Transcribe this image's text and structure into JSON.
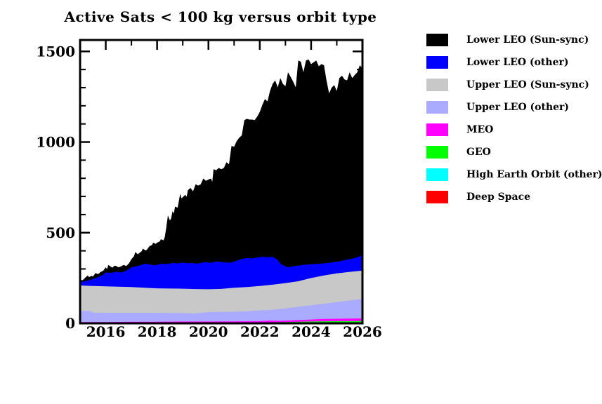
{
  "chart_data": {
    "type": "area",
    "variant": "stacked-area",
    "title": "Active Sats < 100 kg versus orbit type",
    "xlabel": "",
    "ylabel": "",
    "x_range": [
      2015,
      2026
    ],
    "y_range": [
      0,
      1563
    ],
    "x_major_ticks": [
      2016,
      2018,
      2020,
      2022,
      2024,
      2026
    ],
    "x_tick_labels": [
      "2016",
      "2018",
      "2020",
      "2022",
      "2024",
      "2026"
    ],
    "x_minor_step": 1,
    "y_major_ticks": [
      0,
      500,
      1000,
      1500
    ],
    "y_tick_labels": [
      "0",
      "500",
      "1000",
      "1500"
    ],
    "y_minor_step": 100,
    "grid": "off",
    "legend_position": "right",
    "note": "Series listed top-of-stack first; points are cumulative stack heights (active satellite counts) vs decimal year",
    "series": [
      {
        "name": "Lower LEO (Sun-sync)",
        "color": "#000000",
        "points": [
          [
            2015.0,
            240
          ],
          [
            2015.1,
            238
          ],
          [
            2015.2,
            252
          ],
          [
            2015.3,
            264
          ],
          [
            2015.35,
            255
          ],
          [
            2015.45,
            262
          ],
          [
            2015.5,
            258
          ],
          [
            2015.6,
            277
          ],
          [
            2015.7,
            272
          ],
          [
            2015.8,
            283
          ],
          [
            2015.9,
            290
          ],
          [
            2016.0,
            309
          ],
          [
            2016.05,
            300
          ],
          [
            2016.1,
            322
          ],
          [
            2016.2,
            312
          ],
          [
            2016.25,
            307
          ],
          [
            2016.35,
            318
          ],
          [
            2016.4,
            316
          ],
          [
            2016.5,
            309
          ],
          [
            2016.6,
            315
          ],
          [
            2016.7,
            322
          ],
          [
            2016.8,
            316
          ],
          [
            2016.9,
            330
          ],
          [
            2017.0,
            354
          ],
          [
            2017.1,
            370
          ],
          [
            2017.15,
            393
          ],
          [
            2017.25,
            381
          ],
          [
            2017.3,
            387
          ],
          [
            2017.4,
            398
          ],
          [
            2017.45,
            412
          ],
          [
            2017.55,
            402
          ],
          [
            2017.6,
            406
          ],
          [
            2017.7,
            425
          ],
          [
            2017.8,
            432
          ],
          [
            2017.85,
            445
          ],
          [
            2017.95,
            438
          ],
          [
            2018.0,
            445
          ],
          [
            2018.1,
            452
          ],
          [
            2018.15,
            464
          ],
          [
            2018.25,
            458
          ],
          [
            2018.3,
            477
          ],
          [
            2018.35,
            520
          ],
          [
            2018.42,
            595
          ],
          [
            2018.5,
            567
          ],
          [
            2018.55,
            580
          ],
          [
            2018.6,
            619
          ],
          [
            2018.65,
            605
          ],
          [
            2018.7,
            644
          ],
          [
            2018.8,
            638
          ],
          [
            2018.9,
            715
          ],
          [
            2018.95,
            690
          ],
          [
            2019.0,
            696
          ],
          [
            2019.1,
            709
          ],
          [
            2019.15,
            698
          ],
          [
            2019.2,
            734
          ],
          [
            2019.3,
            747
          ],
          [
            2019.4,
            728
          ],
          [
            2019.5,
            767
          ],
          [
            2019.6,
            760
          ],
          [
            2019.7,
            767
          ],
          [
            2019.8,
            799
          ],
          [
            2019.9,
            786
          ],
          [
            2020.0,
            793
          ],
          [
            2020.1,
            799
          ],
          [
            2020.15,
            780
          ],
          [
            2020.2,
            850
          ],
          [
            2020.3,
            844
          ],
          [
            2020.4,
            857
          ],
          [
            2020.5,
            850
          ],
          [
            2020.6,
            857
          ],
          [
            2020.7,
            889
          ],
          [
            2020.8,
            877
          ],
          [
            2020.9,
            979
          ],
          [
            2021.0,
            974
          ],
          [
            2021.1,
            1005
          ],
          [
            2021.2,
            1024
          ],
          [
            2021.3,
            1037
          ],
          [
            2021.4,
            1121
          ],
          [
            2021.5,
            1128
          ],
          [
            2021.6,
            1124
          ],
          [
            2021.7,
            1124
          ],
          [
            2021.8,
            1121
          ],
          [
            2021.9,
            1140
          ],
          [
            2022.0,
            1166
          ],
          [
            2022.1,
            1205
          ],
          [
            2022.2,
            1237
          ],
          [
            2022.3,
            1224
          ],
          [
            2022.4,
            1282
          ],
          [
            2022.5,
            1321
          ],
          [
            2022.6,
            1340
          ],
          [
            2022.7,
            1302
          ],
          [
            2022.8,
            1353
          ],
          [
            2022.9,
            1321
          ],
          [
            2023.0,
            1308
          ],
          [
            2023.1,
            1385
          ],
          [
            2023.2,
            1360
          ],
          [
            2023.3,
            1334
          ],
          [
            2023.4,
            1302
          ],
          [
            2023.5,
            1450
          ],
          [
            2023.6,
            1443
          ],
          [
            2023.7,
            1385
          ],
          [
            2023.8,
            1450
          ],
          [
            2023.9,
            1456
          ],
          [
            2024.0,
            1430
          ],
          [
            2024.1,
            1440
          ],
          [
            2024.2,
            1450
          ],
          [
            2024.3,
            1418
          ],
          [
            2024.4,
            1430
          ],
          [
            2024.5,
            1424
          ],
          [
            2024.6,
            1340
          ],
          [
            2024.7,
            1269
          ],
          [
            2024.8,
            1300
          ],
          [
            2024.9,
            1314
          ],
          [
            2025.0,
            1282
          ],
          [
            2025.1,
            1353
          ],
          [
            2025.2,
            1366
          ],
          [
            2025.3,
            1345
          ],
          [
            2025.4,
            1340
          ],
          [
            2025.5,
            1385
          ],
          [
            2025.6,
            1353
          ],
          [
            2025.7,
            1370
          ],
          [
            2025.8,
            1385
          ],
          [
            2025.9,
            1424
          ],
          [
            2026.0,
            1404
          ]
        ]
      },
      {
        "name": "Lower LEO (other)",
        "color": "#0000ff",
        "points": [
          [
            2015.0,
            228
          ],
          [
            2015.2,
            232
          ],
          [
            2015.4,
            240
          ],
          [
            2015.5,
            245
          ],
          [
            2015.7,
            255
          ],
          [
            2015.9,
            268
          ],
          [
            2016.0,
            281
          ],
          [
            2016.2,
            278
          ],
          [
            2016.4,
            284
          ],
          [
            2016.6,
            280
          ],
          [
            2016.8,
            290
          ],
          [
            2017.0,
            309
          ],
          [
            2017.2,
            315
          ],
          [
            2017.4,
            322
          ],
          [
            2017.5,
            329
          ],
          [
            2017.7,
            325
          ],
          [
            2017.9,
            320
          ],
          [
            2018.0,
            322
          ],
          [
            2018.2,
            330
          ],
          [
            2018.4,
            326
          ],
          [
            2018.6,
            334
          ],
          [
            2018.8,
            330
          ],
          [
            2019.0,
            335
          ],
          [
            2019.2,
            331
          ],
          [
            2019.4,
            333
          ],
          [
            2019.5,
            329
          ],
          [
            2019.7,
            333
          ],
          [
            2019.9,
            338
          ],
          [
            2020.1,
            334
          ],
          [
            2020.3,
            341
          ],
          [
            2020.5,
            338
          ],
          [
            2020.7,
            336
          ],
          [
            2020.9,
            335
          ],
          [
            2021.1,
            345
          ],
          [
            2021.3,
            355
          ],
          [
            2021.5,
            361
          ],
          [
            2021.7,
            358
          ],
          [
            2021.9,
            363
          ],
          [
            2022.1,
            367
          ],
          [
            2022.3,
            365
          ],
          [
            2022.5,
            367
          ],
          [
            2022.7,
            350
          ],
          [
            2022.8,
            329
          ],
          [
            2023.0,
            315
          ],
          [
            2023.1,
            309
          ],
          [
            2023.3,
            315
          ],
          [
            2023.5,
            318
          ],
          [
            2023.7,
            322
          ],
          [
            2023.9,
            325
          ],
          [
            2024.1,
            327
          ],
          [
            2024.3,
            329
          ],
          [
            2024.5,
            331
          ],
          [
            2024.7,
            333
          ],
          [
            2024.9,
            338
          ],
          [
            2025.1,
            342
          ],
          [
            2025.3,
            348
          ],
          [
            2025.5,
            354
          ],
          [
            2025.7,
            360
          ],
          [
            2025.9,
            370
          ],
          [
            2026.0,
            380
          ]
        ]
      },
      {
        "name": "Upper LEO (Sun-sync)",
        "color": "#c8c8c8",
        "points": [
          [
            2015.0,
            209
          ],
          [
            2015.5,
            206
          ],
          [
            2016.0,
            204
          ],
          [
            2016.5,
            202
          ],
          [
            2017.0,
            200
          ],
          [
            2017.5,
            196
          ],
          [
            2018.0,
            193
          ],
          [
            2018.5,
            192
          ],
          [
            2019.0,
            191
          ],
          [
            2019.5,
            189
          ],
          [
            2020.0,
            188
          ],
          [
            2020.5,
            190
          ],
          [
            2021.0,
            196
          ],
          [
            2021.5,
            200
          ],
          [
            2022.0,
            206
          ],
          [
            2022.5,
            213
          ],
          [
            2023.0,
            222
          ],
          [
            2023.5,
            232
          ],
          [
            2024.0,
            250
          ],
          [
            2024.5,
            264
          ],
          [
            2025.0,
            276
          ],
          [
            2025.5,
            284
          ],
          [
            2026.0,
            291
          ]
        ]
      },
      {
        "name": "Upper LEO (other)",
        "color": "#aaaaff",
        "points": [
          [
            2015.0,
            68
          ],
          [
            2015.4,
            68
          ],
          [
            2015.5,
            59
          ],
          [
            2016.0,
            58
          ],
          [
            2017.0,
            58
          ],
          [
            2018.0,
            58
          ],
          [
            2019.0,
            56
          ],
          [
            2019.5,
            55
          ],
          [
            2020.0,
            62
          ],
          [
            2020.5,
            63
          ],
          [
            2021.0,
            64
          ],
          [
            2021.5,
            67
          ],
          [
            2022.0,
            71
          ],
          [
            2022.5,
            75
          ],
          [
            2023.0,
            82
          ],
          [
            2023.5,
            92
          ],
          [
            2024.0,
            100
          ],
          [
            2024.5,
            108
          ],
          [
            2025.0,
            117
          ],
          [
            2025.5,
            126
          ],
          [
            2026.0,
            135
          ]
        ]
      },
      {
        "name": "MEO",
        "color": "#ff00ff",
        "points": [
          [
            2015.0,
            7
          ],
          [
            2016.0,
            7
          ],
          [
            2017.0,
            8
          ],
          [
            2018.0,
            9
          ],
          [
            2019.0,
            10
          ],
          [
            2020.0,
            10
          ],
          [
            2021.0,
            11
          ],
          [
            2022.0,
            12
          ],
          [
            2022.4,
            15
          ],
          [
            2022.8,
            14
          ],
          [
            2023.0,
            15
          ],
          [
            2023.5,
            18
          ],
          [
            2024.0,
            21
          ],
          [
            2024.5,
            24
          ],
          [
            2025.0,
            25
          ],
          [
            2025.5,
            26
          ],
          [
            2026.0,
            27
          ]
        ]
      },
      {
        "name": "GEO",
        "color": "#00ff00",
        "points": [
          [
            2015.0,
            3.5
          ],
          [
            2017.0,
            4
          ],
          [
            2019.0,
            4.5
          ],
          [
            2021.0,
            5
          ],
          [
            2022.0,
            5.5
          ],
          [
            2023.0,
            7
          ],
          [
            2024.0,
            10
          ],
          [
            2025.0,
            11.5
          ],
          [
            2026.0,
            12.5
          ]
        ]
      },
      {
        "name": "High Earth Orbit (other)",
        "color": "#00ffff",
        "points": [
          [
            2015.0,
            2
          ],
          [
            2018.0,
            2.5
          ],
          [
            2021.0,
            3
          ],
          [
            2024.0,
            3.5
          ],
          [
            2026.0,
            4
          ]
        ]
      },
      {
        "name": "Deep Space",
        "color": "#ff0000",
        "points": [
          [
            2015.0,
            1
          ],
          [
            2020.0,
            1.2
          ],
          [
            2026.0,
            1.5
          ]
        ]
      }
    ]
  }
}
